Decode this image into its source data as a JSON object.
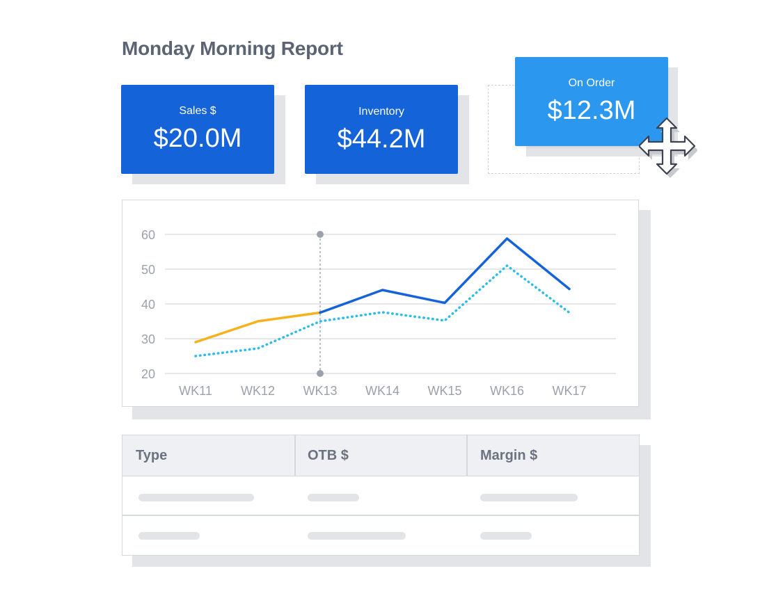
{
  "page": {
    "title": "Monday Morning Report"
  },
  "kpis": [
    {
      "label": "Sales $",
      "value": "$20.0M"
    },
    {
      "label": "Inventory",
      "value": "$44.2M"
    },
    {
      "label": "On Order",
      "value": "$12.3M"
    }
  ],
  "chart_data": {
    "type": "line",
    "x": [
      "WK11",
      "WK12",
      "WK13",
      "WK14",
      "WK15",
      "WK16",
      "WK17"
    ],
    "ylim": [
      20,
      60
    ],
    "yticks": [
      "20",
      "30",
      "40",
      "50",
      "60"
    ],
    "grid": true,
    "series": [
      {
        "style": "solid-actual",
        "color": "#f5b21b",
        "values": [
          29,
          35,
          37.5,
          null,
          null,
          null,
          null
        ]
      },
      {
        "style": "solid-forecast",
        "color": "#1563d8",
        "values": [
          null,
          null,
          37.5,
          44,
          40.3,
          58.8,
          44.3
        ]
      },
      {
        "style": "dotted",
        "color": "#2bbde8",
        "values": [
          25,
          27.2,
          35,
          37.6,
          35.2,
          51,
          37.5
        ]
      }
    ],
    "marker_x": "WK13"
  },
  "table": {
    "columns": [
      "Type",
      "OTB $",
      "Margin $"
    ]
  },
  "icons": {
    "move": "move-arrows-icon"
  }
}
